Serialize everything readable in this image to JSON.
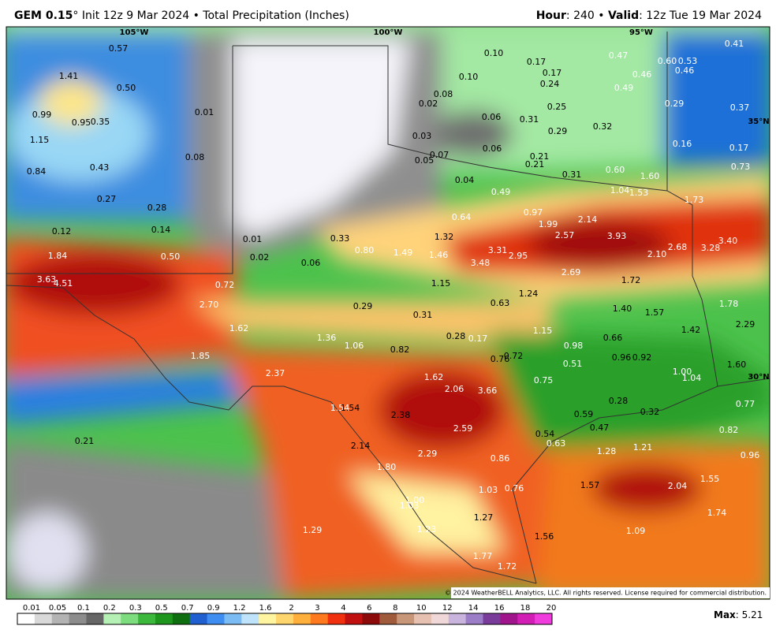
{
  "header": {
    "model": "GEM 0.15",
    "title_rest": "° Init 12z 9 Mar 2024 • Total Precipitation (Inches)",
    "hour_label": "Hour",
    "hour_value": ": 240 • ",
    "valid_label": "Valid",
    "valid_value": ": 12z Tue 19 Mar 2024"
  },
  "map": {
    "lon_labels": [
      "105°W",
      "100°W",
      "95°W"
    ],
    "lat_labels": [
      "35°N",
      "30°N"
    ],
    "values": [
      "0.57",
      "1.41",
      "0.50",
      "0.99",
      "0.95",
      "0.35",
      "1.15",
      "0.01",
      "0.08",
      "0.43",
      "0.84",
      "0.27",
      "0.28",
      "0.12",
      "0.14",
      "1.84",
      "0.50",
      "3.63",
      "4.51",
      "0.72",
      "0.01",
      "0.02",
      "0.06",
      "0.33",
      "0.80",
      "1.49",
      "1.46",
      "1.32",
      "0.64",
      "0.49",
      "0.04",
      "0.05",
      "0.07",
      "0.03",
      "0.02",
      "0.08",
      "0.10",
      "0.10",
      "0.17",
      "0.17",
      "0.24",
      "0.25",
      "0.06",
      "0.31",
      "0.29",
      "0.06",
      "0.21",
      "0.21",
      "0.31",
      "0.32",
      "0.47",
      "0.46",
      "0.49",
      "0.60",
      "0.53",
      "0.46",
      "0.41",
      "0.29",
      "0.37",
      "0.16",
      "0.17",
      "0.60",
      "1.60",
      "0.73",
      "1.04",
      "1.53",
      "1.73",
      "0.97",
      "2.14",
      "1.99",
      "2.57",
      "3.93",
      "3.40",
      "2.68",
      "3.28",
      "2.10",
      "3.31",
      "2.95",
      "3.48",
      "2.69",
      "1.72",
      "1.15",
      "1.24",
      "0.63",
      "1.78",
      "1.40",
      "1.57",
      "1.42",
      "2.29",
      "2.70",
      "0.29",
      "0.31",
      "1.62",
      "1.36",
      "1.06",
      "0.28",
      "0.17",
      "1.15",
      "0.98",
      "0.66",
      "0.82",
      "0.72",
      "0.76",
      "0.96",
      "0.92",
      "0.51",
      "1.60",
      "1.00",
      "1.04",
      "1.85",
      "2.37",
      "1.62",
      "0.75",
      "2.06",
      "3.66",
      "1.54",
      "1.54",
      "0.28",
      "0.32",
      "0.77",
      "2.38",
      "0.59",
      "0.47",
      "2.59",
      "0.54",
      "0.82",
      "0.21",
      "2.14",
      "0.63",
      "1.28",
      "1.21",
      "2.29",
      "0.96",
      "0.86",
      "1.80",
      "1.55",
      "1.57",
      "2.04",
      "0.76",
      "1.03",
      "1.00",
      "1.03",
      "1.74",
      "1.27",
      "1.29",
      "1.23",
      "1.09",
      "1.56",
      "1.77",
      "1.72"
    ],
    "copyright": "© 2024 WeatherBELL Analytics, LLC. All rights reserved. License required for commercial distribution."
  },
  "legend": {
    "ticks": [
      "0.01",
      "0.05",
      "0.1",
      "0.2",
      "0.3",
      "0.5",
      "0.7",
      "0.9",
      "1.2",
      "1.6",
      "2",
      "3",
      "4",
      "6",
      "8",
      "10",
      "12",
      "14",
      "16",
      "18",
      "20"
    ],
    "max_label": "Max",
    "max_value": ": 5.21"
  }
}
